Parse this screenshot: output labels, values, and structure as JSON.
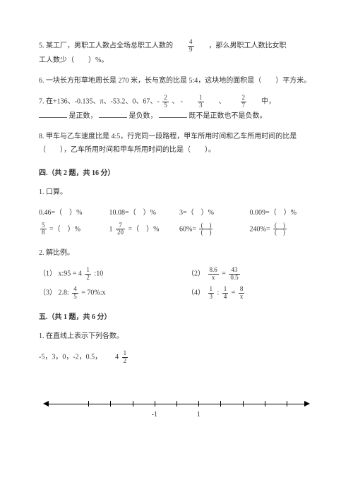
{
  "questions": {
    "q5": {
      "part1": "5. 某工厂，男职工人数占全场总职工人数的",
      "frac": {
        "num": "4",
        "den": "9"
      },
      "part2": "，那么男职工人数比女职",
      "line2": "工人数少（　　）%。"
    },
    "q6": "6. 一块长方形草地周长是 270 米，长与宽的比是 5:4，这块地的面积是（　　）平方米。",
    "q7": {
      "part1": "7. 在+136、-0.135、π、-53.2、0、67、-",
      "f1": {
        "num": "2",
        "den": "5"
      },
      "sep1": "、 -",
      "f2": {
        "num": "1",
        "den": "3"
      },
      "sep2": "、",
      "f3": {
        "num": "2",
        "den": "7"
      },
      "part2": "中，",
      "line2a": "是正数，",
      "line2b": "是负数，",
      "line2c": "既不是正数也不是负数。"
    },
    "q8": "8. 甲车与乙车速度比是 4:5，行完同一段路程，甲车所用时间和乙车所用时间的比是（　　），乙车所用时间和甲车所用时间的比是（　　）。"
  },
  "section4": {
    "title": "四.（共 2 题，共 16 分）",
    "sub1": "1. 口算。",
    "calc": {
      "r1c1": "0.46=（　）%",
      "r1c2": "10.08=（　）%",
      "r1c3": "3=（　）%",
      "r1c4": "0.009=（　）%",
      "r2c1": {
        "f": {
          "num": "5",
          "den": "8"
        },
        "t": " =（　）%"
      },
      "r2c2": {
        "w": "1",
        "f": {
          "num": "7",
          "den": "20"
        },
        "t": " =（　）%"
      },
      "r2c3": {
        "t1": "60%=",
        "f": {
          "num": "(　)",
          "den": "(　)"
        }
      },
      "r2c4": {
        "t1": "240%=",
        "f": {
          "num": "(　)",
          "den": "(　)"
        }
      }
    },
    "sub2": "2. 解比例。",
    "prop": {
      "p1": {
        "label": "（1）",
        "t1": "x:95 = 4",
        "f": {
          "num": "1",
          "den": "2"
        },
        "t2": ":10"
      },
      "p2": {
        "label": "（2）",
        "f1": {
          "num": "8.6",
          "den": "x"
        },
        "eq": " = ",
        "f2": {
          "num": "43",
          "den": "0.5"
        }
      },
      "p3": {
        "label": "（3）",
        "t1": "2.8:",
        "f": {
          "num": "4",
          "den": "5"
        },
        "t2": " = 70%:x"
      },
      "p4": {
        "label": "（4）",
        "f1": {
          "num": "1",
          "den": "3"
        },
        "colon": ":",
        "f2": {
          "num": "1",
          "den": "4"
        },
        "eq": " = ",
        "f3": {
          "num": "8",
          "den": "x"
        }
      }
    }
  },
  "section5": {
    "title": "五.（共 1 题，共 6 分）",
    "sub1": "1. 在直线上表示下列各数。",
    "values": {
      "t1": "-5，3，0，-2，0.5，",
      "w": "4",
      "f": {
        "num": "1",
        "den": "2"
      }
    },
    "numberline": {
      "ticks": [
        {
          "pos": 18,
          "label": ""
        },
        {
          "pos": 26,
          "label": ""
        },
        {
          "pos": 34,
          "label": ""
        },
        {
          "pos": 42,
          "label": "-1"
        },
        {
          "pos": 50,
          "label": ""
        },
        {
          "pos": 58,
          "label": "1"
        },
        {
          "pos": 66,
          "label": ""
        },
        {
          "pos": 74,
          "label": ""
        },
        {
          "pos": 82,
          "label": ""
        },
        {
          "pos": 90,
          "label": ""
        }
      ]
    }
  }
}
